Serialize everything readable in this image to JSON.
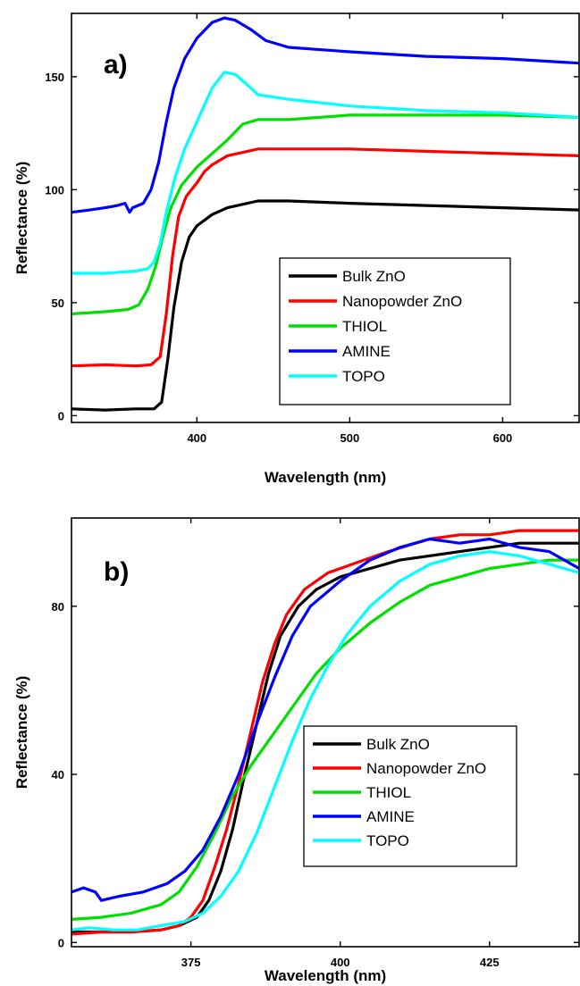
{
  "chart_data": [
    {
      "type": "line",
      "panel_label": "a)",
      "xlabel": "Wavelength (nm)",
      "ylabel": "Reflectance (%)",
      "xlim": [
        318,
        650
      ],
      "ylim": [
        -3,
        178
      ],
      "xticks": [
        400,
        500,
        600
      ],
      "xtick_labels": [
        "400",
        "500",
        "600"
      ],
      "yticks": [
        0,
        50,
        100,
        150
      ],
      "ytick_labels": [
        "0",
        "50",
        "100",
        "150"
      ],
      "grid": false,
      "legend": {
        "position": "bottom-right",
        "entries": [
          "Bulk ZnO",
          "Nanopowder ZnO",
          "THIOL",
          "AMINE",
          "TOPO"
        ]
      },
      "series": [
        {
          "name": "Bulk ZnO",
          "color": "#000000",
          "points": [
            [
              318,
              3
            ],
            [
              340,
              2.5
            ],
            [
              360,
              3
            ],
            [
              372,
              3
            ],
            [
              377,
              6
            ],
            [
              381,
              25
            ],
            [
              385,
              48
            ],
            [
              390,
              68
            ],
            [
              395,
              79
            ],
            [
              400,
              84
            ],
            [
              410,
              89
            ],
            [
              420,
              92
            ],
            [
              440,
              95
            ],
            [
              460,
              95
            ],
            [
              500,
              94
            ],
            [
              550,
              93
            ],
            [
              600,
              92
            ],
            [
              650,
              91
            ]
          ]
        },
        {
          "name": "Nanopowder ZnO",
          "color": "#ff0000",
          "points": [
            [
              318,
              22
            ],
            [
              340,
              22.5
            ],
            [
              360,
              22
            ],
            [
              370,
              22.5
            ],
            [
              376,
              26
            ],
            [
              380,
              45
            ],
            [
              384,
              70
            ],
            [
              388,
              88
            ],
            [
              393,
              97
            ],
            [
              400,
              103
            ],
            [
              405,
              108
            ],
            [
              410,
              111
            ],
            [
              420,
              115
            ],
            [
              440,
              118
            ],
            [
              460,
              118
            ],
            [
              500,
              118
            ],
            [
              550,
              117
            ],
            [
              600,
              116
            ],
            [
              650,
              115
            ]
          ]
        },
        {
          "name": "THIOL",
          "color": "#00e000",
          "points": [
            [
              318,
              45
            ],
            [
              340,
              46
            ],
            [
              355,
              47
            ],
            [
              362,
              49
            ],
            [
              368,
              56
            ],
            [
              373,
              66
            ],
            [
              378,
              80
            ],
            [
              383,
              92
            ],
            [
              390,
              102
            ],
            [
              400,
              110
            ],
            [
              410,
              116
            ],
            [
              420,
              122
            ],
            [
              430,
              129
            ],
            [
              440,
              131
            ],
            [
              460,
              131
            ],
            [
              500,
              133
            ],
            [
              550,
              133
            ],
            [
              600,
              133
            ],
            [
              650,
              132
            ]
          ]
        },
        {
          "name": "AMINE",
          "color": "#0000ff",
          "points": [
            [
              318,
              90
            ],
            [
              330,
              91
            ],
            [
              340,
              92
            ],
            [
              348,
              93
            ],
            [
              353,
              94
            ],
            [
              356,
              90
            ],
            [
              358,
              92
            ],
            [
              365,
              94
            ],
            [
              370,
              100
            ],
            [
              375,
              112
            ],
            [
              380,
              130
            ],
            [
              385,
              145
            ],
            [
              392,
              158
            ],
            [
              400,
              167
            ],
            [
              410,
              174
            ],
            [
              418,
              176
            ],
            [
              425,
              175
            ],
            [
              435,
              171
            ],
            [
              445,
              166
            ],
            [
              460,
              163
            ],
            [
              500,
              161
            ],
            [
              550,
              159
            ],
            [
              600,
              158
            ],
            [
              650,
              156
            ]
          ]
        },
        {
          "name": "TOPO",
          "color": "#00ffff",
          "points": [
            [
              318,
              63
            ],
            [
              340,
              63
            ],
            [
              360,
              64
            ],
            [
              368,
              65
            ],
            [
              372,
              68
            ],
            [
              376,
              76
            ],
            [
              380,
              90
            ],
            [
              386,
              106
            ],
            [
              392,
              118
            ],
            [
              400,
              130
            ],
            [
              410,
              145
            ],
            [
              418,
              152
            ],
            [
              425,
              151
            ],
            [
              432,
              147
            ],
            [
              440,
              142
            ],
            [
              460,
              140
            ],
            [
              500,
              137
            ],
            [
              550,
              135
            ],
            [
              600,
              134
            ],
            [
              650,
              132
            ]
          ]
        }
      ]
    },
    {
      "type": "line",
      "panel_label": "b)",
      "xlabel": "Wavelength (nm)",
      "ylabel": "Reflectance (%)",
      "xlim": [
        355,
        440
      ],
      "ylim": [
        -1,
        101
      ],
      "xticks": [
        375,
        400,
        425
      ],
      "xtick_labels": [
        "375",
        "400",
        "425"
      ],
      "yticks": [
        0,
        40,
        80
      ],
      "ytick_labels": [
        "0",
        "40",
        "80"
      ],
      "grid": false,
      "legend": {
        "position": "bottom-right",
        "entries": [
          "Bulk ZnO",
          "Nanopowder ZnO",
          "THIOL",
          "AMINE",
          "TOPO"
        ]
      },
      "series": [
        {
          "name": "Bulk ZnO",
          "color": "#000000",
          "points": [
            [
              355,
              2.5
            ],
            [
              360,
              2.5
            ],
            [
              365,
              2.5
            ],
            [
              370,
              3
            ],
            [
              373,
              4
            ],
            [
              376,
              6
            ],
            [
              378,
              10
            ],
            [
              380,
              17
            ],
            [
              382,
              27
            ],
            [
              384,
              40
            ],
            [
              386,
              52
            ],
            [
              388,
              64
            ],
            [
              390,
              73
            ],
            [
              393,
              80
            ],
            [
              396,
              84
            ],
            [
              400,
              87
            ],
            [
              405,
              89
            ],
            [
              410,
              91
            ],
            [
              420,
              93
            ],
            [
              425,
              94
            ],
            [
              430,
              95
            ],
            [
              435,
              95
            ],
            [
              440,
              95
            ]
          ]
        },
        {
          "name": "Nanopowder ZnO",
          "color": "#ff0000",
          "points": [
            [
              355,
              2
            ],
            [
              360,
              2.5
            ],
            [
              365,
              2.5
            ],
            [
              370,
              3
            ],
            [
              373,
              4
            ],
            [
              375,
              6
            ],
            [
              377,
              10
            ],
            [
              379,
              18
            ],
            [
              381,
              27
            ],
            [
              383,
              38
            ],
            [
              385,
              50
            ],
            [
              387,
              62
            ],
            [
              389,
              71
            ],
            [
              391,
              78
            ],
            [
              394,
              84
            ],
            [
              398,
              88
            ],
            [
              402,
              90
            ],
            [
              408,
              93
            ],
            [
              415,
              96
            ],
            [
              420,
              97
            ],
            [
              425,
              97
            ],
            [
              430,
              98
            ],
            [
              435,
              98
            ],
            [
              440,
              98
            ]
          ]
        },
        {
          "name": "THIOL",
          "color": "#00e000",
          "points": [
            [
              355,
              5.5
            ],
            [
              360,
              6
            ],
            [
              365,
              7
            ],
            [
              370,
              9
            ],
            [
              373,
              12
            ],
            [
              376,
              18
            ],
            [
              379,
              26
            ],
            [
              382,
              35
            ],
            [
              385,
              42
            ],
            [
              388,
              48
            ],
            [
              392,
              56
            ],
            [
              396,
              64
            ],
            [
              400,
              70
            ],
            [
              405,
              76
            ],
            [
              410,
              81
            ],
            [
              415,
              85
            ],
            [
              420,
              87
            ],
            [
              425,
              89
            ],
            [
              430,
              90
            ],
            [
              435,
              91
            ],
            [
              440,
              91
            ]
          ]
        },
        {
          "name": "AMINE",
          "color": "#0000ff",
          "points": [
            [
              355,
              12
            ],
            [
              357,
              13
            ],
            [
              359,
              12
            ],
            [
              360,
              10
            ],
            [
              363,
              11
            ],
            [
              367,
              12
            ],
            [
              371,
              14
            ],
            [
              374,
              17
            ],
            [
              377,
              22
            ],
            [
              380,
              30
            ],
            [
              383,
              40
            ],
            [
              386,
              52
            ],
            [
              389,
              63
            ],
            [
              392,
              73
            ],
            [
              395,
              80
            ],
            [
              400,
              86
            ],
            [
              405,
              91
            ],
            [
              410,
              94
            ],
            [
              415,
              96
            ],
            [
              420,
              95
            ],
            [
              425,
              96
            ],
            [
              430,
              94
            ],
            [
              435,
              93
            ],
            [
              440,
              89
            ]
          ]
        },
        {
          "name": "TOPO",
          "color": "#00ffff",
          "points": [
            [
              355,
              3
            ],
            [
              358,
              3.5
            ],
            [
              362,
              3
            ],
            [
              366,
              3
            ],
            [
              370,
              4
            ],
            [
              374,
              5
            ],
            [
              377,
              7
            ],
            [
              380,
              11
            ],
            [
              383,
              17
            ],
            [
              386,
              26
            ],
            [
              389,
              37
            ],
            [
              392,
              48
            ],
            [
              395,
              58
            ],
            [
              398,
              66
            ],
            [
              401,
              73
            ],
            [
              405,
              80
            ],
            [
              410,
              86
            ],
            [
              415,
              90
            ],
            [
              420,
              92
            ],
            [
              425,
              93
            ],
            [
              430,
              92
            ],
            [
              435,
              90
            ],
            [
              440,
              88
            ]
          ]
        }
      ]
    }
  ]
}
